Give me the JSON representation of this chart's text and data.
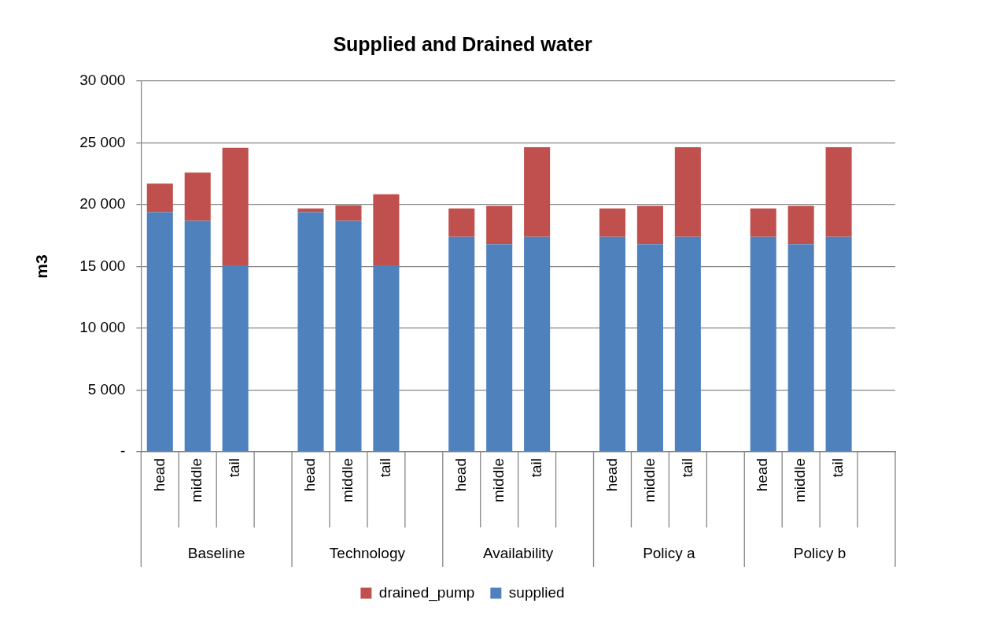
{
  "chart_data": {
    "type": "bar",
    "title": "Supplied and Drained water",
    "ylabel": "m3",
    "categories": [
      "head",
      "middle",
      "tail",
      null,
      "head",
      "middle",
      "tail",
      null,
      "head",
      "middle",
      "tail",
      null,
      "head",
      "middle",
      "tail",
      null,
      "head",
      "middle",
      "tail",
      null
    ],
    "annotations": [
      "Baseline",
      "Technology",
      "Availability",
      "Policy a",
      "Policy b"
    ],
    "series": [
      {
        "name": "supplied",
        "color": "#4f81bd",
        "values": [
          19400,
          18700,
          15100,
          null,
          19400,
          18700,
          15100,
          null,
          17400,
          16800,
          17400,
          null,
          17400,
          16800,
          17400,
          null,
          17400,
          16800,
          17400,
          null
        ]
      },
      {
        "name": "drained_pump",
        "color": "#c0504d",
        "values": [
          2300,
          3900,
          9500,
          null,
          300,
          1250,
          5750,
          null,
          2300,
          3100,
          7250,
          null,
          2300,
          3100,
          7250,
          null,
          2300,
          3100,
          7250,
          null
        ]
      }
    ],
    "stacked": true,
    "ylim": [
      0,
      30000
    ],
    "yticks": [
      {
        "value": 0,
        "label": "-"
      },
      {
        "value": 5000,
        "label": "5 000"
      },
      {
        "value": 10000,
        "label": "10 000"
      },
      {
        "value": 15000,
        "label": "15 000"
      },
      {
        "value": 20000,
        "label": "20 000"
      },
      {
        "value": 25000,
        "label": "25 000"
      },
      {
        "value": 30000,
        "label": "30 000"
      }
    ],
    "grid": "y",
    "legend": "bottom"
  }
}
